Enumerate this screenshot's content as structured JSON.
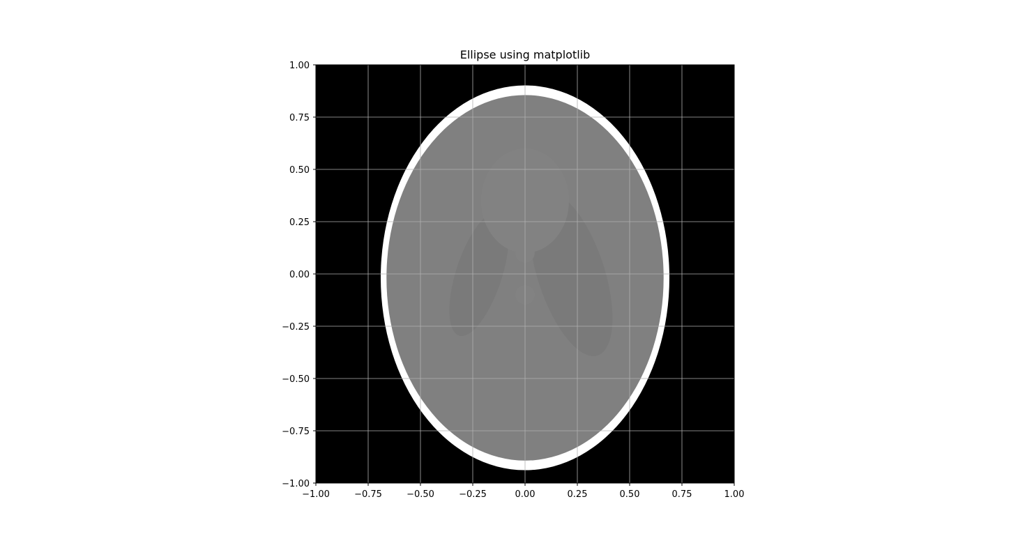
{
  "chart_data": {
    "type": "heatmap",
    "title": "Ellipse using matplotlib",
    "xlabel": "",
    "ylabel": "",
    "xlim": [
      -1.0,
      1.0
    ],
    "ylim": [
      -1.0,
      1.0
    ],
    "x_ticks": [
      "−1.00",
      "−0.75",
      "−0.50",
      "−0.25",
      "0.00",
      "0.25",
      "0.50",
      "0.75",
      "1.00"
    ],
    "y_ticks": [
      "1.00",
      "0.75",
      "0.50",
      "0.25",
      "0.00",
      "−0.25",
      "−0.50",
      "−0.75",
      "−1.00"
    ],
    "x_tick_values": [
      -1.0,
      -0.75,
      -0.5,
      -0.25,
      0.0,
      0.25,
      0.5,
      0.75,
      1.0
    ],
    "y_tick_values": [
      1.0,
      0.75,
      0.5,
      0.25,
      0.0,
      -0.25,
      -0.5,
      -0.75,
      -1.0
    ],
    "grid": true,
    "colormap": "gray",
    "colors": {
      "background": "#000000",
      "outer_ring": "#ffffff",
      "inner_fill": "#808080",
      "inner_regions": "#7a7a7a",
      "grid": "#b0b0b0"
    },
    "ellipses": [
      {
        "name": "outer-ring",
        "cx": 0.0,
        "cy": -0.0184,
        "a": 0.69,
        "b": 0.92,
        "angle": 0,
        "intensity": 1.0
      },
      {
        "name": "inner-body",
        "cx": 0.0,
        "cy": -0.0184,
        "a": 0.6624,
        "b": 0.874,
        "angle": 0,
        "intensity": 0.5
      },
      {
        "name": "left-region",
        "cx": -0.22,
        "cy": 0.0,
        "a": 0.11,
        "b": 0.31,
        "angle": -18,
        "intensity": 0.48
      },
      {
        "name": "right-region",
        "cx": 0.22,
        "cy": 0.0,
        "a": 0.16,
        "b": 0.41,
        "angle": 18,
        "intensity": 0.48
      },
      {
        "name": "top-region",
        "cx": 0.0,
        "cy": 0.35,
        "a": 0.21,
        "b": 0.25,
        "angle": 0,
        "intensity": 0.51
      },
      {
        "name": "small-center-1",
        "cx": 0.0,
        "cy": 0.1,
        "a": 0.046,
        "b": 0.046,
        "angle": 0,
        "intensity": 0.51
      },
      {
        "name": "small-center-2",
        "cx": 0.0,
        "cy": -0.1,
        "a": 0.046,
        "b": 0.046,
        "angle": 0,
        "intensity": 0.51
      }
    ]
  }
}
